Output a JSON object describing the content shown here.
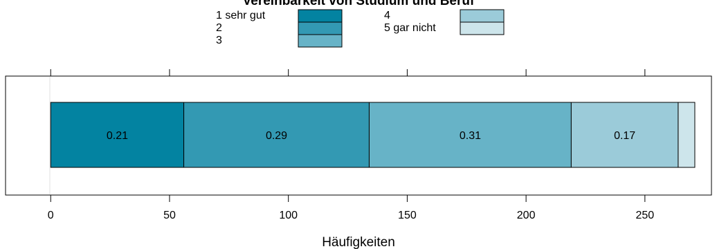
{
  "chart_data": {
    "type": "bar",
    "orientation": "horizontal",
    "stacked": true,
    "title": "Vereinbarkeit von Studium und Beruf",
    "xlabel": "Häufigkeiten",
    "xlim": [
      -19,
      278
    ],
    "xticks": [
      0,
      50,
      100,
      150,
      200,
      250
    ],
    "grid": false,
    "legend_position": "top",
    "series": [
      {
        "name": "1 sehr gut",
        "value": 56,
        "label": "0.21",
        "color": "#0383a1"
      },
      {
        "name": "2",
        "value": 78,
        "label": "0.29",
        "color": "#3399b3"
      },
      {
        "name": "3",
        "value": 85,
        "label": "0.31",
        "color": "#67b3c7"
      },
      {
        "name": "4",
        "value": 45,
        "label": "0.17",
        "color": "#9bcbd9"
      },
      {
        "name": "5 gar nicht",
        "value": 7,
        "label": "",
        "color": "#cde5eb"
      }
    ]
  }
}
